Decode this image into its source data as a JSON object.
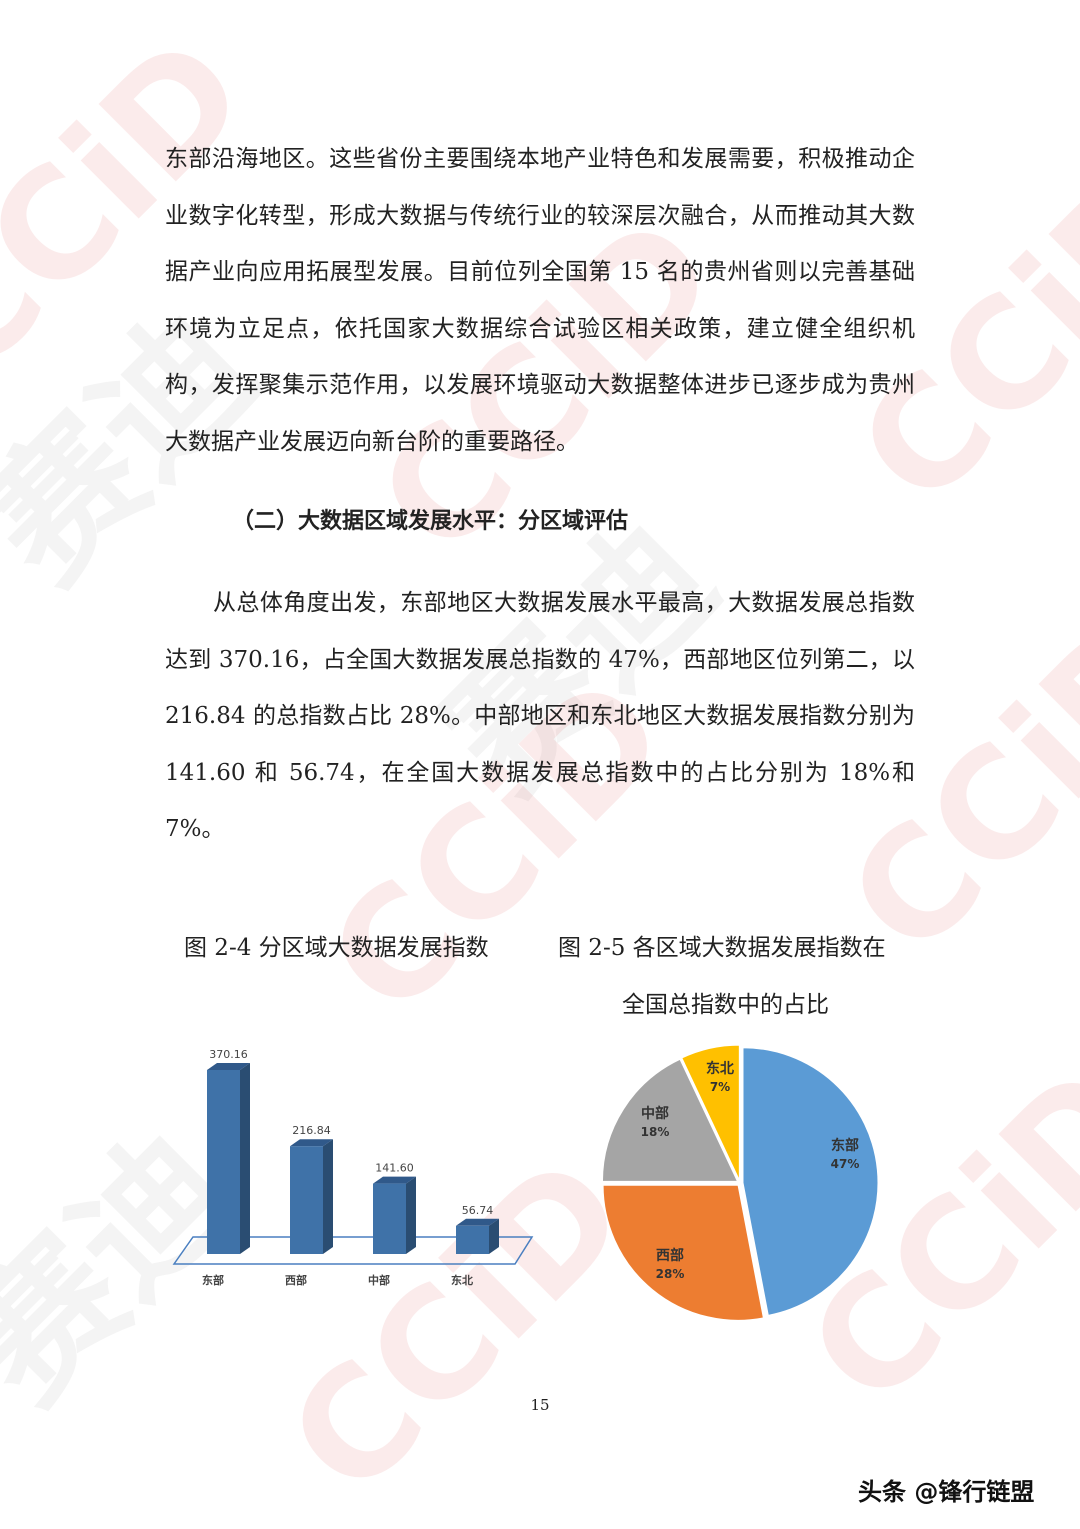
{
  "watermark": "CCiD赛迪",
  "paragraphs": [
    "东部沿海地区。这些省份主要围绕本地产业特色和发展需要，积极推动企业数字化转型，形成大数据与传统行业的较深层次融合，从而推动其大数据产业向应用拓展型发展。目前位列全国第 15 名的贵州省则以完善基础环境为立足点，依托国家大数据综合试验区相关政策，建立健全组织机构，发挥聚集示范作用，以发展环境驱动大数据整体进步已逐步成为贵州大数据产业发展迈向新台阶的重要路径。",
    "从总体角度出发，东部地区大数据发展水平最高，大数据发展总指数达到 370.16，占全国大数据发展总指数的 47%，西部地区位列第二，以 216.84 的总指数占比 28%。中部地区和东北地区大数据发展指数分别为 141.60 和 56.74，在全国大数据发展总指数中的占比分别为 18%和 7%。"
  ],
  "heading": "（二）大数据区域发展水平：分区域评估",
  "captions": {
    "fig24": "图 2-4  分区域大数据发展指数",
    "fig25_line1": "图 2-5  各区域大数据发展指数在",
    "fig25_line2": "全国总指数中的占比"
  },
  "page_number": "15",
  "credit": "头条 @锋行链盟",
  "chart_data": [
    {
      "type": "bar",
      "categories": [
        "东部",
        "西部",
        "中部",
        "东北"
      ],
      "values": [
        370.16,
        216.84,
        141.6,
        56.74
      ],
      "data_labels": [
        "370.16",
        "216.84",
        "141.60",
        "56.74"
      ],
      "color": "#3f72a8",
      "style": "3d"
    },
    {
      "type": "pie",
      "categories": [
        "东部",
        "西部",
        "中部",
        "东北"
      ],
      "values": [
        47,
        28,
        18,
        7
      ],
      "data_labels": [
        "47%",
        "28%",
        "18%",
        "7%"
      ],
      "colors": [
        "#5b9bd5",
        "#ed7d31",
        "#a5a5a5",
        "#ffc000"
      ]
    }
  ]
}
